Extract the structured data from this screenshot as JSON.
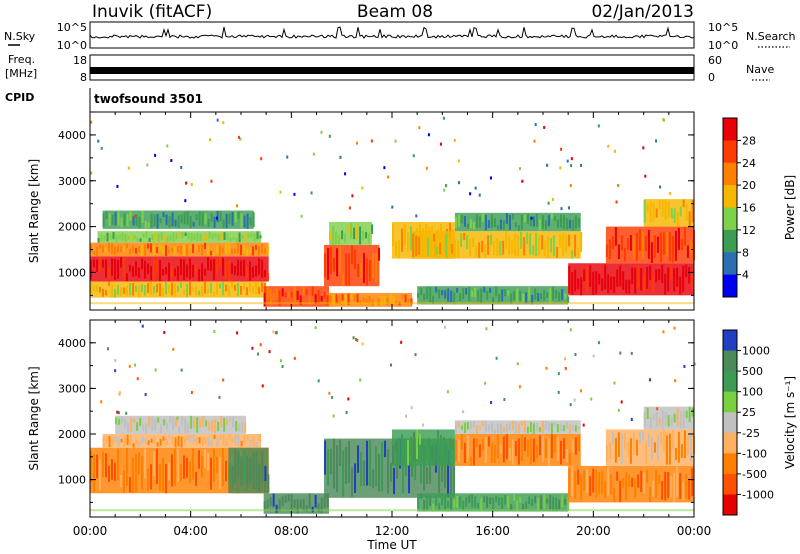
{
  "header": {
    "station": "Inuvik (fitACF)",
    "beam": "Beam 08",
    "date": "02/Jan/2013"
  },
  "top_panels": {
    "nsky_label": "N.Sky",
    "nsky_ticks": [
      "10^5",
      "10^0"
    ],
    "nsearch_label": "N.Search",
    "nsearch_ticks": [
      "10^5",
      "10^0"
    ],
    "freq_label_1": "Freq.",
    "freq_label_2": "[MHz]",
    "freq_ticks": [
      "18",
      "8"
    ],
    "nave_label": "Nave",
    "nave_ticks": [
      "60",
      "0"
    ],
    "cpid_label": "CPID",
    "cpid_text": "twofsound 3501"
  },
  "chart_data": [
    {
      "type": "heatmap",
      "name": "power",
      "ylabel": "Slant Range [km]",
      "yticks": [
        "4000",
        "3000",
        "2000",
        "1000"
      ],
      "ylim": [
        180,
        4500
      ],
      "colorbar_label": "Power [dB]",
      "colorbar_ticks": [
        "28",
        "24",
        "20",
        "16",
        "12",
        "8",
        "4"
      ],
      "colorbar_colors": [
        "#e8000b",
        "#ff3b00",
        "#ff7f00",
        "#f5b700",
        "#7fd04a",
        "#3c9c54",
        "#2a6fb0",
        "#0000f0"
      ],
      "bands": [
        {
          "x0": 0.0,
          "x1": 7.1,
          "y0": 800,
          "y1": 1350,
          "level": 0
        },
        {
          "x0": 0.0,
          "x1": 7.1,
          "y0": 1350,
          "y1": 1650,
          "level": 2
        },
        {
          "x0": 0.3,
          "x1": 6.8,
          "y0": 1650,
          "y1": 1900,
          "level": 4
        },
        {
          "x0": 0.5,
          "x1": 6.5,
          "y0": 1950,
          "y1": 2350,
          "level": 5
        },
        {
          "x0": 0.0,
          "x1": 7.0,
          "y0": 450,
          "y1": 800,
          "level": 3
        },
        {
          "x0": 6.9,
          "x1": 9.5,
          "y0": 250,
          "y1": 700,
          "level": 1
        },
        {
          "x0": 9.3,
          "x1": 11.5,
          "y0": 700,
          "y1": 1600,
          "level": 1
        },
        {
          "x0": 9.5,
          "x1": 11.2,
          "y0": 1600,
          "y1": 2100,
          "level": 4
        },
        {
          "x0": 9.4,
          "x1": 12.8,
          "y0": 250,
          "y1": 550,
          "level": 2
        },
        {
          "x0": 12.0,
          "x1": 14.5,
          "y0": 1300,
          "y1": 2100,
          "level": 3
        },
        {
          "x0": 12.8,
          "x1": 19.5,
          "y0": 1300,
          "y1": 1900,
          "level": 3
        },
        {
          "x0": 14.5,
          "x1": 19.5,
          "y0": 1900,
          "y1": 2300,
          "level": 5
        },
        {
          "x0": 13.0,
          "x1": 19.0,
          "y0": 300,
          "y1": 700,
          "level": 5
        },
        {
          "x0": 19.0,
          "x1": 24.0,
          "y0": 500,
          "y1": 1200,
          "level": 0
        },
        {
          "x0": 20.5,
          "x1": 24.0,
          "y0": 1200,
          "y1": 2000,
          "level": 1
        },
        {
          "x0": 22.0,
          "x1": 24.0,
          "y0": 2000,
          "y1": 2600,
          "level": 3
        }
      ]
    },
    {
      "type": "heatmap",
      "name": "velocity",
      "ylabel": "Slant Range [km]",
      "yticks": [
        "4000",
        "3000",
        "2000",
        "1000"
      ],
      "ylim": [
        180,
        4500
      ],
      "xlabel": "Time UT",
      "xticks": [
        "00:00",
        "04:00",
        "08:00",
        "12:00",
        "16:00",
        "20:00",
        "00:00"
      ],
      "xlim": [
        0,
        24
      ],
      "colorbar_label": "Velocity [m s⁻¹]",
      "colorbar_ticks": [
        "1000",
        "500",
        "100",
        "25",
        "-25",
        "-100",
        "-500",
        "-1000"
      ],
      "colorbar_colors": [
        "#2040c0",
        "#4c8a5a",
        "#3c9c54",
        "#78d040",
        "#c0c0c0",
        "#ffb060",
        "#ff8000",
        "#ff5000",
        "#e80000"
      ],
      "bands": [
        {
          "x0": 0.0,
          "x1": 7.1,
          "y0": 700,
          "y1": 1700,
          "level": 6
        },
        {
          "x0": 0.5,
          "x1": 6.8,
          "y0": 1700,
          "y1": 2000,
          "level": 5
        },
        {
          "x0": 1.0,
          "x1": 6.2,
          "y0": 2000,
          "y1": 2400,
          "level": 4
        },
        {
          "x0": 5.5,
          "x1": 7.1,
          "y0": 700,
          "y1": 1700,
          "level": 1
        },
        {
          "x0": 6.9,
          "x1": 9.5,
          "y0": 250,
          "y1": 700,
          "level": 1
        },
        {
          "x0": 9.3,
          "x1": 14.5,
          "y0": 600,
          "y1": 1900,
          "level": 1
        },
        {
          "x0": 12.0,
          "x1": 14.5,
          "y0": 1300,
          "y1": 2100,
          "level": 2
        },
        {
          "x0": 14.5,
          "x1": 19.5,
          "y0": 1300,
          "y1": 2000,
          "level": 6
        },
        {
          "x0": 14.5,
          "x1": 19.5,
          "y0": 2000,
          "y1": 2300,
          "level": 4
        },
        {
          "x0": 13.0,
          "x1": 19.0,
          "y0": 300,
          "y1": 700,
          "level": 2
        },
        {
          "x0": 19.0,
          "x1": 24.0,
          "y0": 500,
          "y1": 1300,
          "level": 6
        },
        {
          "x0": 20.5,
          "x1": 24.0,
          "y0": 1300,
          "y1": 2100,
          "level": 5
        },
        {
          "x0": 22.0,
          "x1": 24.0,
          "y0": 2100,
          "y1": 2600,
          "level": 4
        }
      ]
    }
  ]
}
